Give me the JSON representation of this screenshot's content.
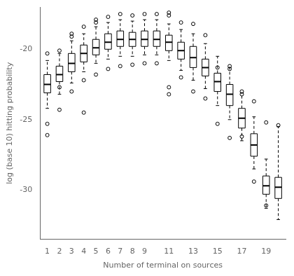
{
  "chart_data": {
    "type": "boxplot",
    "xlabel": "Number of terminal on sources",
    "ylabel": "log (base 10) hitting probability",
    "xlim": [
      0.4,
      20.6
    ],
    "ylim": [
      -33.5,
      -17.0
    ],
    "xticks": [
      1,
      2,
      3,
      4,
      5,
      6,
      7,
      8,
      9,
      11,
      13,
      15,
      17,
      19
    ],
    "yticks": [
      -30,
      -25,
      -20
    ],
    "x": [
      1,
      2,
      3,
      4,
      5,
      6,
      7,
      8,
      9,
      10,
      11,
      12,
      13,
      14,
      15,
      16,
      17,
      18,
      19,
      20
    ],
    "boxes": [
      {
        "med": -22.5,
        "q1": -23.1,
        "q3": -21.8,
        "whislo": -24.2,
        "whishi": -20.8,
        "fliers": [
          -25.3,
          -26.1,
          -20.3
        ]
      },
      {
        "med": -21.8,
        "q1": -22.3,
        "q3": -21.2,
        "whislo": -23.2,
        "whishi": -20.3,
        "fliers": [
          -24.3,
          -20.1,
          -22.7
        ]
      },
      {
        "med": -21.0,
        "q1": -21.6,
        "q3": -20.3,
        "whislo": -22.4,
        "whishi": -19.4,
        "fliers": [
          -23.0,
          -18.9,
          -19.1
        ]
      },
      {
        "med": -20.3,
        "q1": -20.9,
        "q3": -19.7,
        "whislo": -21.6,
        "whishi": -18.9,
        "fliers": [
          -22.2,
          -18.4,
          -24.5
        ]
      },
      {
        "med": -19.9,
        "q1": -20.4,
        "q3": -19.3,
        "whislo": -21.0,
        "whishi": -18.4,
        "fliers": [
          -21.8,
          -17.9,
          -18.1
        ]
      },
      {
        "med": -19.5,
        "q1": -20.0,
        "q3": -18.9,
        "whislo": -20.7,
        "whishi": -18.1,
        "fliers": [
          -21.4,
          -17.7
        ]
      },
      {
        "med": -19.3,
        "q1": -19.8,
        "q3": -18.7,
        "whislo": -20.5,
        "whishi": -17.9,
        "fliers": [
          -21.2,
          -17.5
        ]
      },
      {
        "med": -19.3,
        "q1": -19.8,
        "q3": -18.8,
        "whislo": -20.5,
        "whishi": -18.0,
        "fliers": [
          -21.1,
          -17.6
        ]
      },
      {
        "med": -19.3,
        "q1": -19.8,
        "q3": -18.7,
        "whislo": -20.4,
        "whishi": -17.9,
        "fliers": [
          -21.0,
          -17.5
        ]
      },
      {
        "med": -19.3,
        "q1": -19.8,
        "q3": -18.7,
        "whislo": -20.4,
        "whishi": -17.9,
        "fliers": [
          -21.0,
          -17.5
        ]
      },
      {
        "med": -19.5,
        "q1": -20.1,
        "q3": -19.0,
        "whislo": -20.8,
        "whishi": -18.2,
        "fliers": [
          -17.4,
          -17.6,
          -23.2,
          -22.7
        ]
      },
      {
        "med": -20.1,
        "q1": -20.7,
        "q3": -19.5,
        "whislo": -21.5,
        "whishi": -18.6,
        "fliers": [
          -18.1,
          -22.0
        ]
      },
      {
        "med": -20.6,
        "q1": -21.3,
        "q3": -19.8,
        "whislo": -22.2,
        "whishi": -18.9,
        "fliers": [
          -23.0,
          -18.2
        ]
      },
      {
        "med": -21.3,
        "q1": -21.9,
        "q3": -20.7,
        "whislo": -22.8,
        "whishi": -19.6,
        "fliers": [
          -23.5,
          -19.0
        ]
      },
      {
        "med": -22.3,
        "q1": -23.0,
        "q3": -21.7,
        "whislo": -24.0,
        "whishi": -20.5,
        "fliers": [
          -21.3,
          -25.3
        ]
      },
      {
        "med": -23.2,
        "q1": -24.0,
        "q3": -22.5,
        "whislo": -25.0,
        "whishi": -21.3,
        "fliers": [
          -21.2,
          -21.4,
          -26.3
        ]
      },
      {
        "med": -24.9,
        "q1": -25.6,
        "q3": -24.2,
        "whislo": -26.5,
        "whishi": -23.1,
        "fliers": [
          -23.0,
          -23.2,
          -26.2
        ]
      },
      {
        "med": -26.8,
        "q1": -27.6,
        "q3": -26.0,
        "whislo": -28.5,
        "whishi": -24.8,
        "fliers": [
          -23.7,
          -29.4
        ]
      },
      {
        "med": -29.7,
        "q1": -30.3,
        "q3": -29.0,
        "whislo": -31.3,
        "whishi": -27.8,
        "fliers": [
          -31.1,
          -25.2
        ]
      },
      {
        "med": -29.8,
        "q1": -30.6,
        "q3": -29.1,
        "whislo": -32.1,
        "whishi": -25.5,
        "fliers": [
          -25.4
        ]
      }
    ],
    "color": "black",
    "line_style": "dashed",
    "marker": "circle",
    "grid": false
  }
}
